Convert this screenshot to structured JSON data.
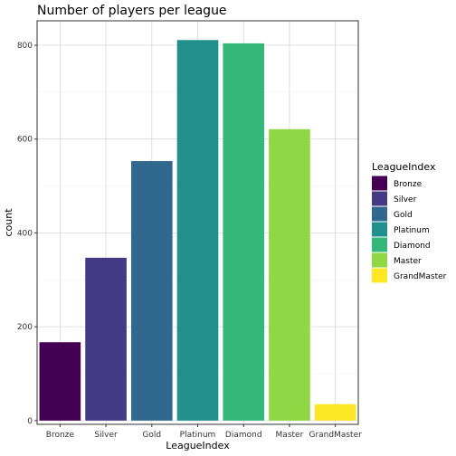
{
  "chart_data": {
    "type": "bar",
    "title": "Number of players per league",
    "xlabel": "LeagueIndex",
    "ylabel": "count",
    "categories": [
      "Bronze",
      "Silver",
      "Gold",
      "Platinum",
      "Diamond",
      "Master",
      "GrandMaster"
    ],
    "values": [
      167,
      347,
      553,
      811,
      804,
      621,
      35
    ],
    "colors": [
      "#440154",
      "#443a83",
      "#31688e",
      "#21908d",
      "#35b779",
      "#8fd744",
      "#fde725"
    ],
    "ylim": [
      -8,
      852
    ],
    "yticks": [
      0,
      200,
      400,
      600,
      800
    ],
    "ytick_labels": [
      "0",
      "200",
      "400",
      "600",
      "800"
    ],
    "grid": true,
    "legend": {
      "title": "LeagueIndex",
      "position": "right",
      "entries": [
        "Bronze",
        "Silver",
        "Gold",
        "Platinum",
        "Diamond",
        "Master",
        "GrandMaster"
      ]
    }
  }
}
